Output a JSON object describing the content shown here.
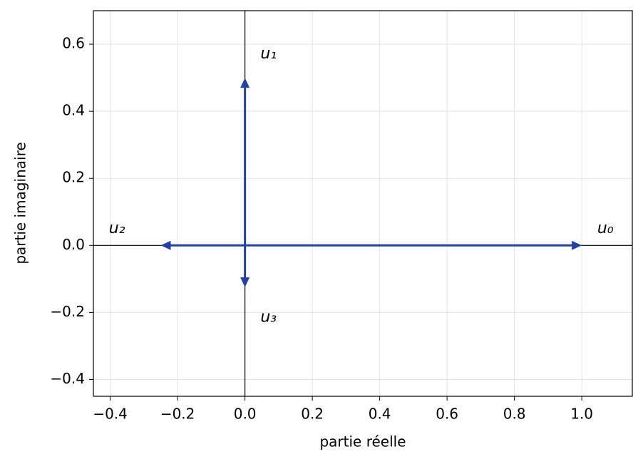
{
  "chart_data": {
    "type": "quiver",
    "x_label": "partie réelle",
    "y_label": "partie imaginaire",
    "color": "#2141a8",
    "series": [
      {
        "name": "u₀",
        "x": 1.0,
        "y": 0
      },
      {
        "name": "u₁",
        "x": 0,
        "y": 0.5
      },
      {
        "name": "u₂",
        "x": -0.25,
        "y": 0
      },
      {
        "name": "u₃",
        "x": 0,
        "y": -0.125
      }
    ],
    "xlim": [
      -0.45,
      1.15
    ],
    "ylim": [
      -0.45,
      0.7
    ],
    "xticks": [
      {
        "value": -0.4,
        "label": "−0.4"
      },
      {
        "value": -0.2,
        "label": "−0.2"
      },
      {
        "value": 0,
        "label": "0.0"
      },
      0.2,
      0.4,
      0.6,
      0.8,
      {
        "value": 1.0,
        "label": "1.0"
      }
    ],
    "yticks": [
      {
        "value": -0.4,
        "label": "−0.4"
      },
      {
        "value": -0.2,
        "label": "−0.2"
      },
      {
        "value": 0,
        "label": "0.0"
      },
      0.2,
      0.4,
      0.6
    ],
    "grid": true
  }
}
